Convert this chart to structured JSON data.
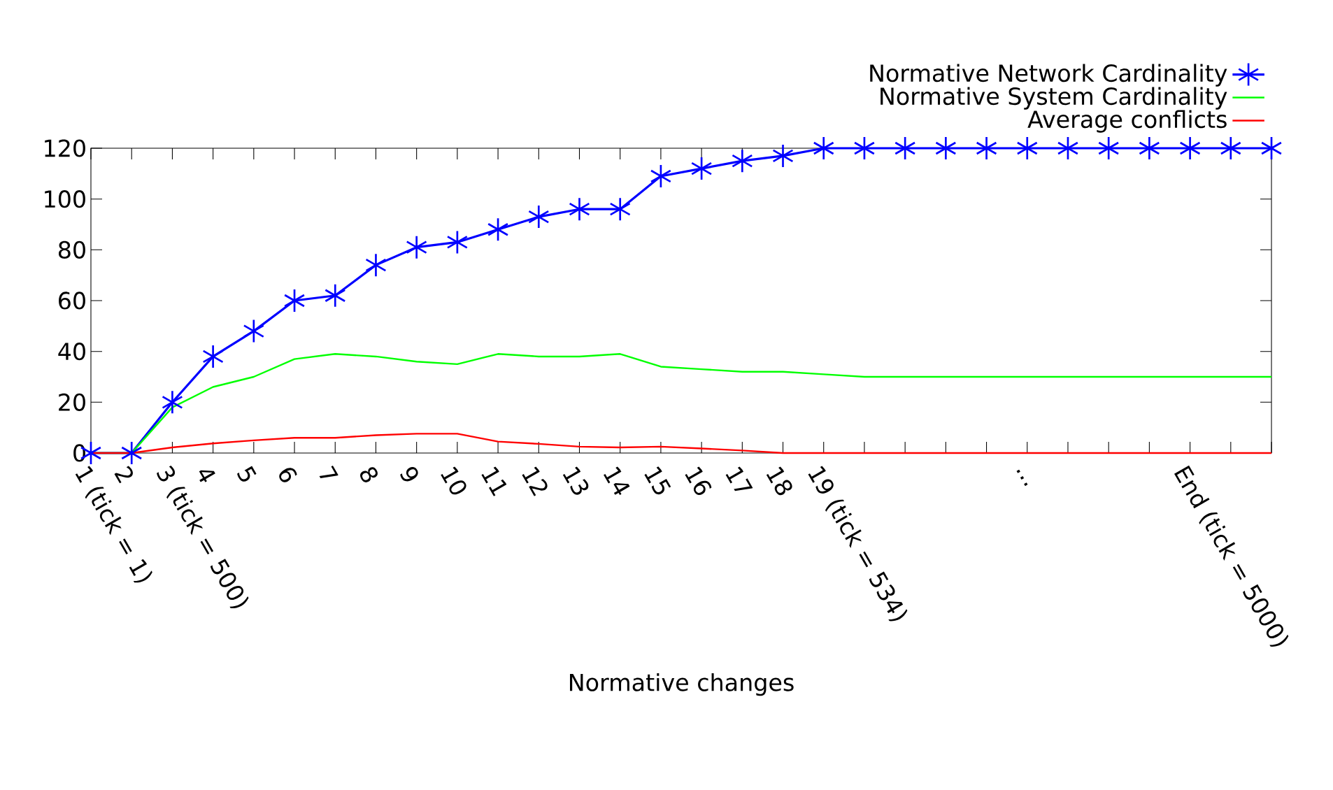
{
  "chart_data": {
    "type": "line",
    "xlabel": "Normative changes",
    "categories": [
      "1 (tick = 1)",
      "2",
      "3 (tick = 500)",
      "4",
      "5",
      "6",
      "7",
      "8",
      "9",
      "10",
      "11",
      "12",
      "13",
      "14",
      "15",
      "16",
      "17",
      "18",
      "19 (tick = 534)",
      null,
      null,
      null,
      null,
      "...",
      null,
      null,
      null,
      "End (tick = 5000)",
      null,
      null
    ],
    "series": [
      {
        "name": "Normative Network Cardinality",
        "color": "#0000ff",
        "marker": "cross",
        "values": [
          0,
          0,
          20,
          38,
          48,
          60,
          62,
          74,
          81,
          83,
          88,
          93,
          96,
          96,
          109,
          112,
          115,
          117,
          120,
          120,
          120,
          120,
          120,
          120,
          120,
          120,
          120,
          120,
          120,
          120
        ]
      },
      {
        "name": "Normative System Cardinality",
        "color": "#00ff00",
        "values": [
          0,
          0,
          18,
          26,
          30,
          37,
          39,
          38,
          36,
          35,
          39,
          38,
          38,
          39,
          34,
          33,
          32,
          32,
          31,
          30,
          30,
          30,
          30,
          30,
          30,
          30,
          30,
          30,
          30,
          30
        ]
      },
      {
        "name": "Average conflicts",
        "color": "#ff0000",
        "values": [
          0,
          0,
          2.2,
          3.8,
          5,
          6,
          6,
          7,
          7.6,
          7.6,
          4.5,
          3.6,
          2.5,
          2.2,
          2.5,
          1.8,
          1,
          0,
          0,
          0,
          0,
          0,
          0,
          0,
          0,
          0,
          0,
          0,
          0,
          0
        ]
      }
    ],
    "ylim": [
      0,
      120
    ],
    "yticks": [
      0,
      20,
      40,
      60,
      80,
      100,
      120
    ],
    "grid": false,
    "legend": "top right",
    "marker": "none",
    "line_style": "solid"
  }
}
